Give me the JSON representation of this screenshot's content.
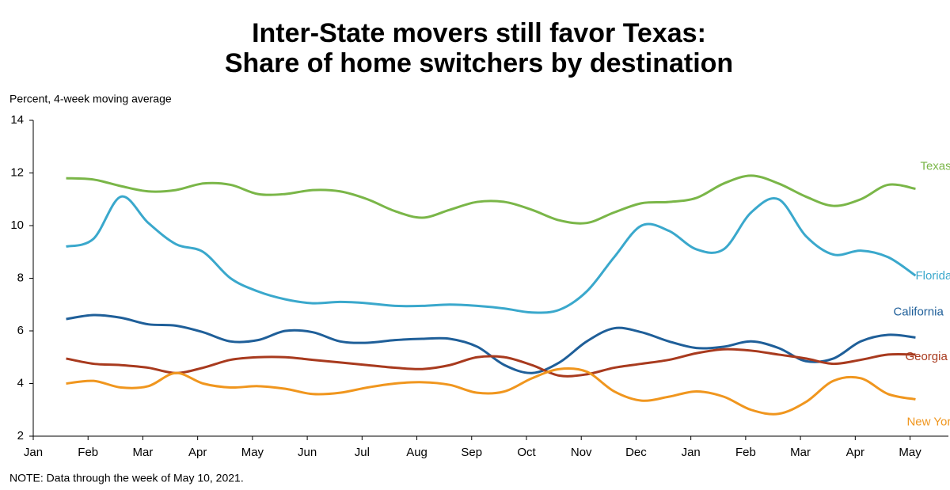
{
  "chart_data": {
    "type": "line",
    "title": [
      "Inter-State movers still favor Texas:",
      "Share of home switchers by destination"
    ],
    "y_label": "Percent, 4-week moving average",
    "note": "NOTE: Data through the week of May 10, 2021.",
    "x": [
      0.6,
      1.1,
      1.6,
      2.1,
      2.6,
      3.1,
      3.6,
      4.1,
      4.6,
      5.1,
      5.6,
      6.1,
      6.6,
      7.1,
      7.6,
      8.1,
      8.6,
      9.1,
      9.6,
      10.1,
      10.6,
      11.1,
      11.6,
      12.1,
      12.6,
      13.1,
      13.6,
      14.1,
      14.6,
      15.1,
      15.6,
      16.1
    ],
    "xlim": [
      0,
      16.7
    ],
    "xticks": [
      {
        "value": 0,
        "label": "Jan"
      },
      {
        "value": 1,
        "label": "Feb"
      },
      {
        "value": 2,
        "label": "Mar"
      },
      {
        "value": 3,
        "label": "Apr"
      },
      {
        "value": 4,
        "label": "May"
      },
      {
        "value": 5,
        "label": "Jun"
      },
      {
        "value": 6,
        "label": "Jul"
      },
      {
        "value": 7,
        "label": "Aug"
      },
      {
        "value": 8,
        "label": "Sep"
      },
      {
        "value": 9,
        "label": "Oct"
      },
      {
        "value": 10,
        "label": "Nov"
      },
      {
        "value": 11,
        "label": "Dec"
      },
      {
        "value": 12,
        "label": "Jan"
      },
      {
        "value": 13,
        "label": "Feb"
      },
      {
        "value": 14,
        "label": "Mar"
      },
      {
        "value": 15,
        "label": "Apr"
      },
      {
        "value": 16,
        "label": "May"
      }
    ],
    "ylim": [
      2,
      14
    ],
    "yticks": [
      2,
      4,
      6,
      8,
      10,
      12,
      14
    ],
    "grid": false,
    "series": [
      {
        "name": "Texas",
        "color": "#7ab648",
        "values": [
          11.8,
          11.75,
          11.5,
          11.3,
          11.35,
          11.6,
          11.55,
          11.2,
          11.2,
          11.35,
          11.3,
          11.0,
          10.55,
          10.3,
          10.6,
          10.9,
          10.9,
          10.6,
          10.2,
          10.1,
          10.5,
          10.85,
          10.9,
          11.05,
          11.6,
          11.9,
          11.6,
          11.1,
          10.75,
          11.0,
          11.55,
          11.4
        ]
      },
      {
        "name": "Florida",
        "color": "#3aa8cc",
        "values": [
          9.2,
          9.5,
          11.1,
          10.1,
          9.3,
          9.0,
          8.0,
          7.5,
          7.2,
          7.05,
          7.1,
          7.05,
          6.95,
          6.95,
          7.0,
          6.95,
          6.85,
          6.7,
          6.8,
          7.5,
          8.8,
          10.0,
          9.8,
          9.1,
          9.1,
          10.5,
          11.0,
          9.6,
          8.9,
          9.05,
          8.8,
          8.1
        ]
      },
      {
        "name": "California",
        "color": "#1f5f99",
        "values": [
          6.45,
          6.6,
          6.5,
          6.25,
          6.2,
          5.95,
          5.6,
          5.65,
          6.0,
          5.95,
          5.6,
          5.55,
          5.65,
          5.7,
          5.7,
          5.4,
          4.7,
          4.4,
          4.8,
          5.6,
          6.1,
          5.95,
          5.6,
          5.35,
          5.4,
          5.6,
          5.35,
          4.85,
          4.95,
          5.6,
          5.85,
          5.75
        ]
      },
      {
        "name": "Georgia",
        "color": "#a83a1e",
        "values": [
          4.95,
          4.75,
          4.7,
          4.6,
          4.4,
          4.6,
          4.9,
          5.0,
          5.0,
          4.9,
          4.8,
          4.7,
          4.6,
          4.55,
          4.7,
          5.0,
          5.0,
          4.7,
          4.3,
          4.35,
          4.6,
          4.75,
          4.9,
          5.15,
          5.3,
          5.25,
          5.1,
          4.95,
          4.75,
          4.9,
          5.1,
          5.1
        ]
      },
      {
        "name": "New York",
        "color": "#f0961e",
        "values": [
          4.0,
          4.1,
          3.85,
          3.9,
          4.4,
          4.0,
          3.85,
          3.9,
          3.8,
          3.6,
          3.65,
          3.85,
          4.0,
          4.05,
          3.95,
          3.65,
          3.7,
          4.2,
          4.55,
          4.45,
          3.7,
          3.35,
          3.5,
          3.7,
          3.5,
          3.0,
          2.85,
          3.3,
          4.1,
          4.2,
          3.6,
          3.4
        ]
      }
    ]
  }
}
